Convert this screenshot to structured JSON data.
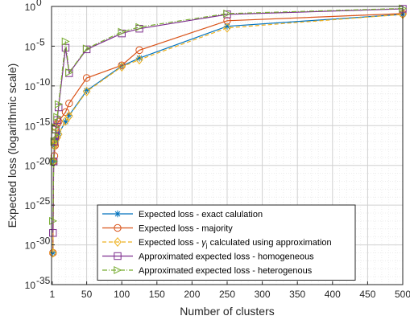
{
  "chart_data": {
    "type": "line",
    "title": "",
    "xlabel": "Number of clusters",
    "ylabel": "Expected loss (logarithmic scale)",
    "xlim": [
      0,
      500
    ],
    "ylim_exponent": [
      -35,
      0
    ],
    "yscale": "log",
    "grid": true,
    "legend_position": "bottom-center",
    "x_ticks": [
      1,
      50,
      100,
      150,
      200,
      250,
      300,
      350,
      400,
      450,
      500
    ],
    "y_tick_exponents": [
      0,
      -5,
      -10,
      -15,
      -20,
      -25,
      -30,
      -35
    ],
    "y_tick_base": "10",
    "series": [
      {
        "name": "Expected loss - exact calulation",
        "color": "#0072BD",
        "marker": "asterisk",
        "dash": "solid",
        "x": [
          2,
          3,
          4,
          5,
          6,
          8,
          10,
          20,
          25,
          50,
          100,
          125,
          250,
          500
        ],
        "log10_y": [
          -31,
          -19.5,
          -17.5,
          -17.1,
          -16.8,
          -16.4,
          -16,
          -14.5,
          -13.7,
          -10.6,
          -7.5,
          -6.5,
          -2.5,
          -1
        ]
      },
      {
        "name": "Expected loss - majority",
        "color": "#D95319",
        "marker": "circle",
        "dash": "solid",
        "x": [
          2,
          3,
          4,
          5,
          6,
          8,
          10,
          20,
          25,
          50,
          100,
          125,
          250,
          500
        ],
        "log10_y": [
          -31,
          -19.5,
          -18.8,
          -17.5,
          -15.2,
          -14.8,
          -14.5,
          -13.3,
          -12.2,
          -9,
          -7.4,
          -5.5,
          -1.8,
          -0.9
        ]
      },
      {
        "name": "Expected loss - γj calculated using approximation",
        "legend_prefix": "Expected loss - ",
        "legend_symbol": "γ",
        "legend_subscript": "j",
        "legend_suffix": " calculated using approximation",
        "color": "#EDB120",
        "marker": "diamond",
        "dash": "dashed",
        "x": [
          2,
          3,
          4,
          5,
          6,
          8,
          10,
          20,
          25,
          50,
          100,
          125,
          250,
          500
        ],
        "log10_y": [
          -31,
          -19.5,
          -17.5,
          -17.2,
          -16.8,
          -16.5,
          -16.1,
          -14.4,
          -13.8,
          -10.7,
          -7.6,
          -6.7,
          -2.7,
          -1
        ]
      },
      {
        "name": "Approximated expected loss - homogeneous",
        "color": "#7E2F8E",
        "marker": "square",
        "dash": "solid",
        "x": [
          2,
          3,
          4,
          5,
          6,
          8,
          10,
          20,
          25,
          50,
          100,
          125,
          250,
          500
        ],
        "log10_y": [
          -28.5,
          -19.5,
          -17,
          -16.3,
          -15.5,
          -14.3,
          -12.7,
          -5.2,
          -8.4,
          -5.4,
          -3.4,
          -2.8,
          -1,
          -0.3
        ]
      },
      {
        "name": "Approximated expected loss - heterogenous",
        "color": "#77AC30",
        "marker": "triangle-right",
        "dash": "dashdot",
        "x": [
          2,
          3,
          4,
          5,
          6,
          8,
          10,
          20,
          25,
          50,
          100,
          125,
          250,
          500
        ],
        "log10_y": [
          -27,
          -19.5,
          -17,
          -16.2,
          -15.2,
          -13.9,
          -12.3,
          -4.4,
          -8.3,
          -5.3,
          -3.2,
          -2.6,
          -0.9,
          -0.25
        ]
      }
    ]
  }
}
